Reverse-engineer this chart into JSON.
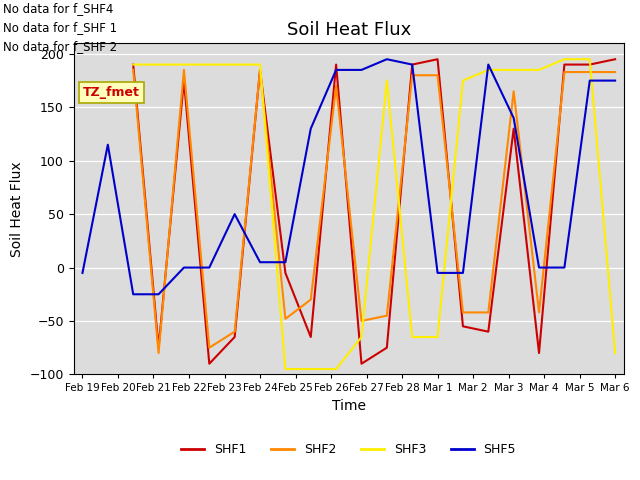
{
  "title": "Soil Heat Flux",
  "xlabel": "Time",
  "ylabel": "Soil Heat Flux",
  "ylim": [
    -100,
    210
  ],
  "yticks": [
    -100,
    -50,
    0,
    50,
    100,
    150,
    200
  ],
  "plot_bg": "#dcdcdc",
  "annotations": [
    "No data for f_SHF4",
    "No data for f_SHF 1",
    "No data for f_SHF 2"
  ],
  "tz_label": "TZ_fmet",
  "x_labels": [
    "Feb 19",
    "Feb 20",
    "Feb 21",
    "Feb 22",
    "Feb 23",
    "Feb 24",
    "Feb 25",
    "Feb 26",
    "Feb 27",
    "Feb 28",
    "Mar 1",
    "Mar 2",
    "Mar 3",
    "Mar 4",
    "Mar 5",
    "Mar 6"
  ],
  "series": {
    "SHF1": {
      "color": "#cc0000",
      "data": [
        null,
        null,
        190,
        -75,
        175,
        -90,
        -65,
        185,
        -5,
        -65,
        190,
        -90,
        -75,
        190,
        195,
        -55,
        -60,
        130,
        -80,
        190,
        190,
        195
      ]
    },
    "SHF2": {
      "color": "#ff8800",
      "data": [
        null,
        null,
        185,
        -80,
        185,
        -75,
        -60,
        185,
        -48,
        -30,
        170,
        -50,
        -45,
        180,
        180,
        -42,
        -42,
        165,
        -42,
        183,
        183,
        183
      ]
    },
    "SHF3": {
      "color": "#ffee00",
      "data": [
        null,
        null,
        190,
        190,
        190,
        190,
        190,
        190,
        -95,
        -95,
        -95,
        -65,
        175,
        -65,
        -65,
        175,
        185,
        185,
        185,
        195,
        195,
        -80
      ]
    },
    "SHF5": {
      "color": "#0000cc",
      "data": [
        -5,
        115,
        -25,
        -25,
        0,
        0,
        50,
        5,
        5,
        130,
        185,
        185,
        195,
        190,
        -5,
        -5,
        190,
        140,
        0,
        0,
        175,
        175
      ]
    }
  },
  "x_tick_positions": [
    0,
    2,
    4,
    6,
    8,
    10,
    12,
    14,
    16,
    18,
    20,
    22,
    24,
    26,
    28,
    30
  ],
  "legend_entries": [
    "SHF1",
    "SHF2",
    "SHF3",
    "SHF5"
  ],
  "legend_colors": [
    "#cc0000",
    "#ff8800",
    "#ffee00",
    "#0000cc"
  ]
}
